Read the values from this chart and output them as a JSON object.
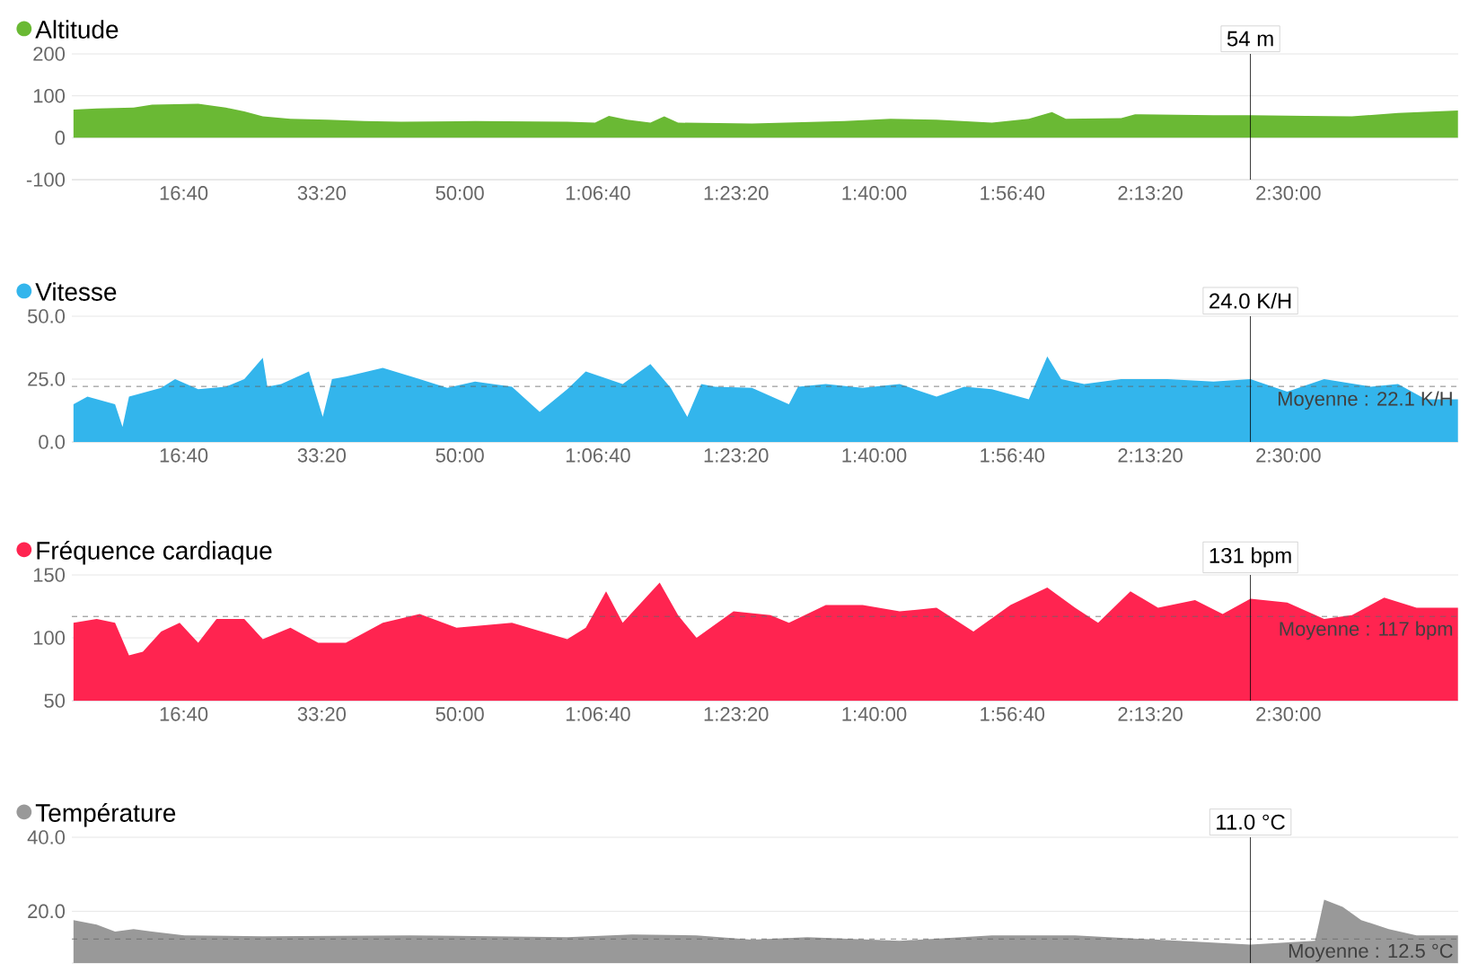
{
  "chart_data": [
    {
      "type": "area",
      "x": [
        202,
        370,
        637,
        771,
        1105,
        1305,
        1439,
        1573,
        1773,
        2041,
        2308,
        2575,
        3110,
        3778,
        3979,
        4079,
        4212,
        4380,
        4480,
        4580,
        5115,
        5784,
        6118,
        6452,
        6853,
        7120,
        7288,
        7388,
        7789,
        7889,
        8457,
        8725,
        9126,
        9460,
        9794,
        10228
      ],
      "series": [
        {
          "name": "Altitude",
          "color": "#6ab934",
          "values": [
            67,
            70,
            72,
            79,
            81,
            72,
            63,
            51,
            45,
            43,
            40,
            38,
            40,
            38,
            36,
            52,
            43,
            36,
            51,
            36,
            34,
            40,
            45,
            43,
            36,
            45,
            61,
            45,
            47,
            56,
            54,
            54,
            52,
            51,
            59,
            65
          ]
        }
      ],
      "xlim": [
        190,
        10230
      ],
      "xticks": [
        {
          "value": 1000,
          "label": "16:40"
        },
        {
          "value": 2000,
          "label": "33:20"
        },
        {
          "value": 3000,
          "label": "50:00"
        },
        {
          "value": 4000,
          "label": "1:06:40"
        },
        {
          "value": 5000,
          "label": "1:23:20"
        },
        {
          "value": 6000,
          "label": "1:40:00"
        },
        {
          "value": 7000,
          "label": "1:56:40"
        },
        {
          "value": 8000,
          "label": "2:13:20"
        },
        {
          "value": 9000,
          "label": "2:30:00"
        }
      ],
      "ylim": [
        -100,
        200
      ],
      "yticks": [
        -100,
        0,
        100,
        200
      ],
      "grid": "y",
      "legend": "top left",
      "ref_lines": [
        {
          "axis": "x",
          "value": 8725,
          "color": "#000000"
        }
      ],
      "annotations": [
        "54 m"
      ]
    },
    {
      "type": "area",
      "x": [
        202,
        303,
        503,
        557,
        604,
        837,
        938,
        1105,
        1305,
        1439,
        1573,
        1606,
        1706,
        1907,
        2007,
        2074,
        2174,
        2442,
        2709,
        2909,
        3110,
        3377,
        3578,
        3778,
        3912,
        4179,
        4380,
        4527,
        4647,
        4748,
        4848,
        5115,
        5383,
        5449,
        5650,
        5917,
        6185,
        6452,
        6653,
        6853,
        7120,
        7254,
        7354,
        7521,
        7789,
        8123,
        8457,
        8725,
        8992,
        9259,
        9594,
        9794,
        9995,
        10228
      ],
      "series": [
        {
          "name": "Vitesse",
          "color": "#33b5ec",
          "values": [
            15,
            18,
            15,
            6,
            18,
            21.5,
            25,
            21,
            22,
            25,
            33.5,
            22,
            23,
            28,
            10,
            25,
            26,
            29.5,
            25,
            21.5,
            24,
            22,
            12,
            21,
            28,
            23,
            31,
            21.5,
            10,
            23,
            22,
            21.5,
            15,
            22,
            23,
            21.5,
            23,
            18,
            22,
            21,
            17,
            34,
            25,
            23,
            25,
            25,
            24,
            25,
            20,
            25,
            22,
            23,
            17,
            17
          ]
        }
      ],
      "xlim": [
        190,
        10230
      ],
      "xticks": [
        {
          "value": 1000,
          "label": "16:40"
        },
        {
          "value": 2000,
          "label": "33:20"
        },
        {
          "value": 3000,
          "label": "50:00"
        },
        {
          "value": 4000,
          "label": "1:06:40"
        },
        {
          "value": 5000,
          "label": "1:23:20"
        },
        {
          "value": 6000,
          "label": "1:40:00"
        },
        {
          "value": 7000,
          "label": "1:56:40"
        },
        {
          "value": 8000,
          "label": "2:13:20"
        },
        {
          "value": 9000,
          "label": "2:30:00"
        }
      ],
      "ylim": [
        0,
        50
      ],
      "yticks": [
        {
          "value": 0,
          "label": "0.0"
        },
        {
          "value": 25,
          "label": "25.0"
        },
        {
          "value": 50,
          "label": "50.0"
        }
      ],
      "grid": "y",
      "legend": "top left",
      "ref_lines": [
        {
          "axis": "y",
          "value": 22.1,
          "label": "Moyenne : 22.1 K/H",
          "line_style": "dashed",
          "color": "#666666"
        },
        {
          "axis": "x",
          "value": 8725,
          "color": "#000000"
        }
      ],
      "annotations": [
        "24.0 K/H"
      ]
    },
    {
      "type": "area",
      "x": [
        202,
        370,
        503,
        604,
        704,
        837,
        971,
        1105,
        1238,
        1439,
        1573,
        1773,
        1974,
        2174,
        2442,
        2709,
        2976,
        3377,
        3778,
        3912,
        4059,
        4179,
        4447,
        4580,
        4714,
        4982,
        5249,
        5383,
        5650,
        5917,
        6185,
        6452,
        6719,
        6987,
        7254,
        7455,
        7622,
        7856,
        8056,
        8324,
        8524,
        8725,
        8992,
        9259,
        9460,
        9694,
        9928,
        10228
      ],
      "series": [
        {
          "name": "Fréquence cardiaque",
          "color": "#ff2450",
          "values": [
            112,
            115,
            112,
            86,
            89,
            105,
            112,
            96,
            115,
            115,
            99,
            108,
            96,
            96,
            112,
            119,
            108,
            112,
            99,
            108,
            137,
            112,
            144,
            118,
            100,
            121,
            118,
            112,
            126,
            126,
            121,
            124,
            105,
            126,
            140,
            124,
            112,
            137,
            124,
            130,
            119,
            131,
            128,
            115,
            118,
            132,
            124,
            124
          ]
        }
      ],
      "xlim": [
        190,
        10230
      ],
      "xticks": [
        {
          "value": 1000,
          "label": "16:40"
        },
        {
          "value": 2000,
          "label": "33:20"
        },
        {
          "value": 3000,
          "label": "50:00"
        },
        {
          "value": 4000,
          "label": "1:06:40"
        },
        {
          "value": 5000,
          "label": "1:23:20"
        },
        {
          "value": 6000,
          "label": "1:40:00"
        },
        {
          "value": 7000,
          "label": "1:56:40"
        },
        {
          "value": 8000,
          "label": "2:13:20"
        },
        {
          "value": 9000,
          "label": "2:30:00"
        }
      ],
      "ylim": [
        50,
        150
      ],
      "yticks": [
        50,
        100,
        150
      ],
      "grid": "y",
      "legend": "top left",
      "ref_lines": [
        {
          "axis": "y",
          "value": 117,
          "label": "Moyenne : 117 bpm",
          "line_style": "dashed",
          "color": "#666666"
        },
        {
          "axis": "x",
          "value": 8725,
          "color": "#000000"
        }
      ],
      "annotations": [
        "131 bpm"
      ]
    },
    {
      "type": "area",
      "x": [
        202,
        370,
        503,
        637,
        771,
        1005,
        1573,
        2642,
        3778,
        4246,
        4714,
        5115,
        5516,
        6185,
        6853,
        7455,
        8056,
        8725,
        9193,
        9259,
        9393,
        9527,
        9727,
        9928,
        10228
      ],
      "series": [
        {
          "name": "Température",
          "color": "#999999",
          "values": [
            17.6,
            16.4,
            14.5,
            15.2,
            14.5,
            13.5,
            13.2,
            13.5,
            13,
            13.7,
            13.5,
            12.3,
            13,
            12,
            13.5,
            13.5,
            12.3,
            11,
            12,
            23.1,
            21.2,
            17.6,
            15.2,
            13.5,
            13.5
          ]
        }
      ],
      "xlim": [
        190,
        10230
      ],
      "ylim": [
        6,
        40
      ],
      "yticks": [
        {
          "value": 20,
          "label": "20.0"
        },
        {
          "value": 40,
          "label": "40.0"
        }
      ],
      "grid": "y",
      "legend": "top left",
      "tick_labels": "y",
      "ref_lines": [
        {
          "axis": "y",
          "value": 12.5,
          "label": "Moyenne : 12.5 °C",
          "line_style": "dashed",
          "color": "#666666"
        },
        {
          "axis": "x",
          "value": 8725,
          "color": "#000000"
        }
      ],
      "annotations": [
        "11.0 °C"
      ]
    }
  ]
}
